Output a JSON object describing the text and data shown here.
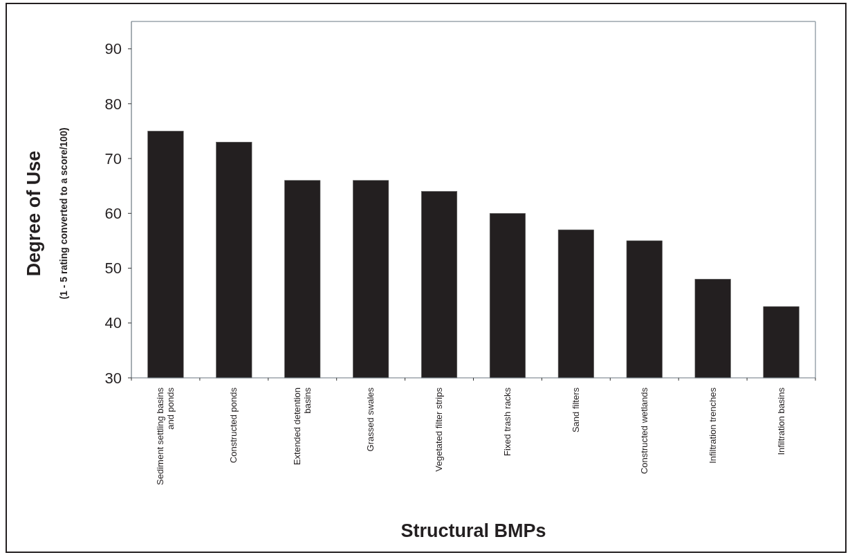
{
  "chart_data": {
    "type": "bar",
    "xlabel": "Structural BMPs",
    "ylabel": "Degree of Use\n(1 - 5 rating converted to a score/100)",
    "categories": [
      "Sediment settling basins and ponds",
      "Constructed ponds",
      "Extended detention basins",
      "Grassed swales",
      "Vegetated filter strips",
      "Fixed trash racks",
      "Sand filters",
      "Constructed wetlands",
      "Infiltration trenches",
      "Infiltration basins"
    ],
    "values": [
      75,
      73,
      66,
      66,
      64,
      60,
      57,
      55,
      48,
      43
    ],
    "color": "#231f20",
    "ylim": [
      30,
      95
    ],
    "yticks": [
      30,
      40,
      50,
      60,
      70,
      80,
      90
    ],
    "grid": false
  }
}
